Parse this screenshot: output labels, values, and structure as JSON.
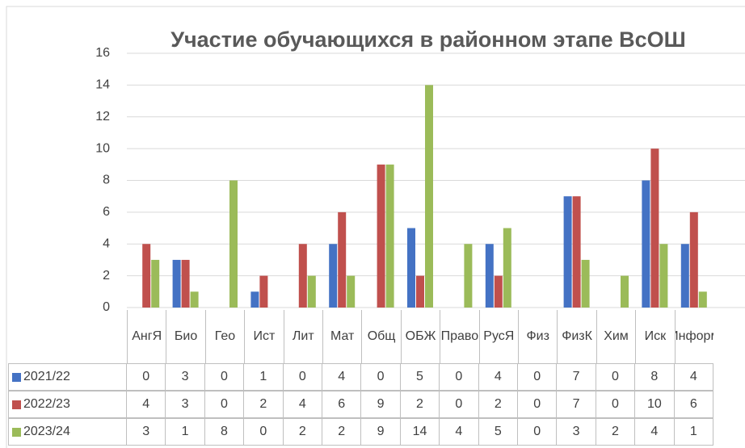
{
  "chart_data": {
    "type": "bar",
    "title": "Участие обучающихся в районном этапе ВсОШ",
    "categories": [
      "АнгЯ",
      "Био",
      "Гео",
      "Ист",
      "Лит",
      "Мат",
      "Общ",
      "ОБЖ",
      "Право",
      "РусЯ",
      "Физ",
      "ФизК",
      "Хим",
      "Иск",
      "Информ"
    ],
    "series": [
      {
        "name": "2021/22",
        "color": "#4472c4",
        "values": [
          0,
          3,
          0,
          1,
          0,
          4,
          0,
          5,
          0,
          4,
          0,
          7,
          0,
          8,
          4
        ]
      },
      {
        "name": "2022/23",
        "color": "#c0504d",
        "values": [
          4,
          3,
          0,
          2,
          4,
          6,
          9,
          2,
          0,
          2,
          0,
          7,
          0,
          10,
          6
        ]
      },
      {
        "name": "2023/24",
        "color": "#9bbb59",
        "values": [
          3,
          1,
          8,
          0,
          2,
          2,
          9,
          14,
          4,
          5,
          0,
          3,
          2,
          4,
          1
        ]
      }
    ],
    "ylim": [
      0,
      16
    ],
    "yticks": [
      0,
      2,
      4,
      6,
      8,
      10,
      12,
      14,
      16
    ],
    "grid": true,
    "data_table": true
  }
}
